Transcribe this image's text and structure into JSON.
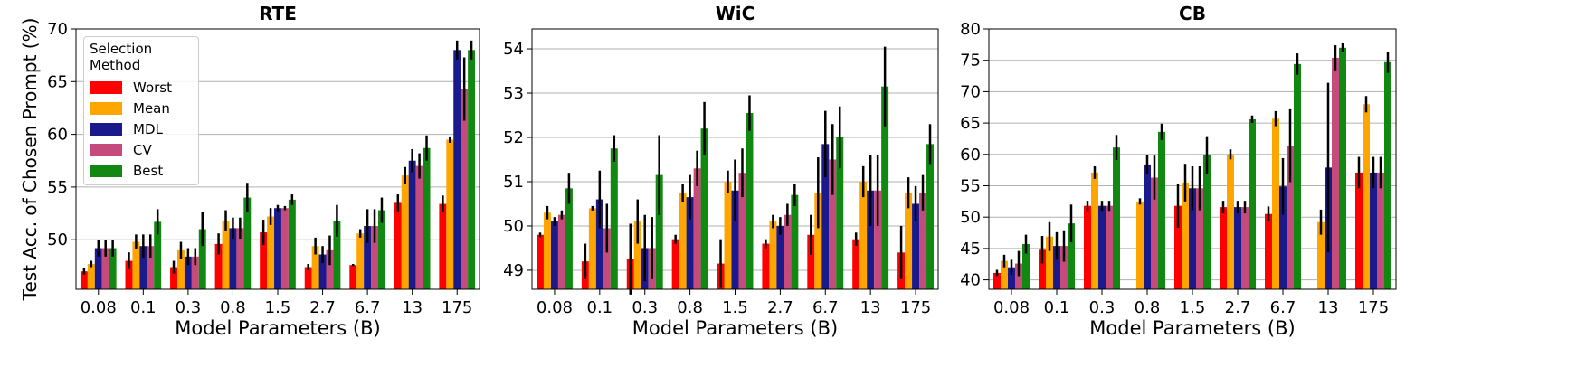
{
  "chart_data": [
    {
      "type": "bar",
      "title": "RTE",
      "x_label": "Model Parameters (B)",
      "y_label": "Test Acc. of Chosen Prompt (%)",
      "legend_title": "Selection Method",
      "legend": "upper left",
      "grid": true,
      "categories": [
        "0.08",
        "0.1",
        "0.3",
        "0.8",
        "1.5",
        "2.7",
        "6.7",
        "13",
        "175"
      ],
      "ylim": [
        45.3,
        70
      ],
      "yticks": [
        50,
        55,
        60,
        65,
        70
      ],
      "series": [
        {
          "name": "Worst",
          "color": "#ff0000",
          "values": [
            47.0,
            48.0,
            47.4,
            49.6,
            50.7,
            47.4,
            47.6,
            53.5,
            53.4
          ],
          "errors": [
            0.3,
            0.8,
            0.6,
            1.0,
            1.2,
            0.3,
            0.1,
            0.8,
            0.8
          ]
        },
        {
          "name": "Mean",
          "color": "#ffa500",
          "values": [
            47.7,
            49.8,
            49.0,
            51.8,
            52.2,
            49.4,
            50.6,
            56.1,
            59.5
          ],
          "errors": [
            0.3,
            0.7,
            0.8,
            1.0,
            0.8,
            0.8,
            0.4,
            0.8,
            0.3
          ]
        },
        {
          "name": "MDL",
          "color": "#1a1a8c",
          "values": [
            49.2,
            49.4,
            48.4,
            51.1,
            53.0,
            48.6,
            51.3,
            57.5,
            68.0
          ],
          "errors": [
            0.8,
            1.1,
            0.8,
            1.0,
            0.3,
            0.8,
            1.6,
            1.1,
            0.9
          ]
        },
        {
          "name": "CV",
          "color": "#c44b7c",
          "values": [
            49.2,
            49.4,
            48.4,
            51.1,
            53.0,
            49.0,
            51.3,
            57.0,
            64.3
          ],
          "errors": [
            0.8,
            1.1,
            0.8,
            1.0,
            0.2,
            1.4,
            1.6,
            1.2,
            3.0
          ]
        },
        {
          "name": "Best",
          "color": "#118811",
          "values": [
            49.2,
            51.7,
            51.0,
            54.0,
            53.8,
            51.8,
            52.8,
            58.7,
            68.0
          ],
          "errors": [
            0.8,
            1.2,
            1.6,
            1.4,
            0.5,
            1.5,
            1.2,
            1.2,
            0.9
          ]
        }
      ]
    },
    {
      "type": "bar",
      "title": "WiC",
      "x_label": "Model Parameters (B)",
      "grid": true,
      "categories": [
        "0.08",
        "0.1",
        "0.3",
        "0.8",
        "1.5",
        "2.7",
        "6.7",
        "13",
        "175"
      ],
      "ylim": [
        48.57,
        54.45
      ],
      "yticks": [
        49,
        50,
        51,
        52,
        53,
        54
      ],
      "series": [
        {
          "name": "Worst",
          "color": "#ff0000",
          "values": [
            49.8,
            49.2,
            49.25,
            49.7,
            49.15,
            49.6,
            49.8,
            49.7,
            49.4
          ],
          "errors": [
            0.05,
            0.4,
            0.8,
            0.1,
            0.55,
            0.1,
            0.45,
            0.15,
            0.6
          ]
        },
        {
          "name": "Mean",
          "color": "#ffa500",
          "values": [
            50.3,
            50.4,
            50.1,
            50.75,
            51.0,
            50.1,
            50.75,
            51.0,
            50.75
          ],
          "errors": [
            0.15,
            0.05,
            0.5,
            0.2,
            0.25,
            0.15,
            0.8,
            0.35,
            0.35
          ]
        },
        {
          "name": "MDL",
          "color": "#1a1a8c",
          "values": [
            50.1,
            50.6,
            49.5,
            50.65,
            50.8,
            50.0,
            51.85,
            50.8,
            50.5
          ],
          "errors": [
            0.1,
            0.65,
            0.75,
            0.5,
            0.7,
            0.2,
            0.75,
            0.8,
            0.4
          ]
        },
        {
          "name": "CV",
          "color": "#c44b7c",
          "values": [
            50.25,
            49.95,
            49.5,
            51.3,
            51.2,
            50.25,
            51.5,
            50.8,
            50.75
          ],
          "errors": [
            0.1,
            0.55,
            0.7,
            0.4,
            0.55,
            0.25,
            0.8,
            0.8,
            0.4
          ]
        },
        {
          "name": "Best",
          "color": "#118811",
          "values": [
            50.85,
            51.75,
            51.15,
            52.2,
            52.55,
            50.7,
            52.0,
            53.15,
            51.85
          ],
          "errors": [
            0.35,
            0.3,
            0.9,
            0.6,
            0.4,
            0.25,
            0.7,
            0.9,
            0.45
          ]
        }
      ]
    },
    {
      "type": "bar",
      "title": "CB",
      "x_label": "Model Parameters (B)",
      "grid": true,
      "categories": [
        "0.08",
        "0.1",
        "0.3",
        "0.8",
        "1.5",
        "2.7",
        "6.7",
        "13",
        "175"
      ],
      "ylim": [
        38.5,
        80
      ],
      "yticks": [
        40,
        45,
        50,
        55,
        60,
        65,
        70,
        75,
        80
      ],
      "series": [
        {
          "name": "Worst",
          "color": "#ff0000",
          "values": [
            41.1,
            44.8,
            51.8,
            null,
            51.8,
            51.6,
            50.5,
            null,
            57.1
          ],
          "errors": [
            0.5,
            2.2,
            0.8,
            null,
            3.5,
            1.0,
            1.2,
            null,
            2.5
          ]
        },
        {
          "name": "Mean",
          "color": "#ffa500",
          "values": [
            43.0,
            46.9,
            57.1,
            52.5,
            55.5,
            60.0,
            65.7,
            49.2,
            68.0
          ],
          "errors": [
            1.0,
            2.3,
            1.0,
            0.5,
            3.0,
            0.8,
            1.2,
            2.0,
            1.3
          ]
        },
        {
          "name": "MDL",
          "color": "#1a1a8c",
          "values": [
            42.0,
            45.4,
            51.8,
            58.4,
            54.6,
            51.6,
            54.9,
            57.9,
            57.1
          ],
          "errors": [
            1.2,
            2.2,
            0.8,
            1.5,
            3.5,
            1.0,
            4.5,
            13.5,
            2.5
          ]
        },
        {
          "name": "CV",
          "color": "#c44b7c",
          "values": [
            42.6,
            45.4,
            51.8,
            56.3,
            54.6,
            51.6,
            61.4,
            75.4,
            57.1
          ],
          "errors": [
            2.0,
            2.5,
            0.8,
            3.5,
            3.5,
            1.0,
            5.8,
            2.0,
            2.5
          ]
        },
        {
          "name": "Best",
          "color": "#118811",
          "values": [
            45.7,
            49.0,
            61.1,
            63.6,
            59.9,
            65.6,
            74.4,
            77.0,
            74.7
          ],
          "errors": [
            1.5,
            3.0,
            2.0,
            1.3,
            3.0,
            0.6,
            1.7,
            0.7,
            1.7
          ]
        }
      ]
    }
  ]
}
